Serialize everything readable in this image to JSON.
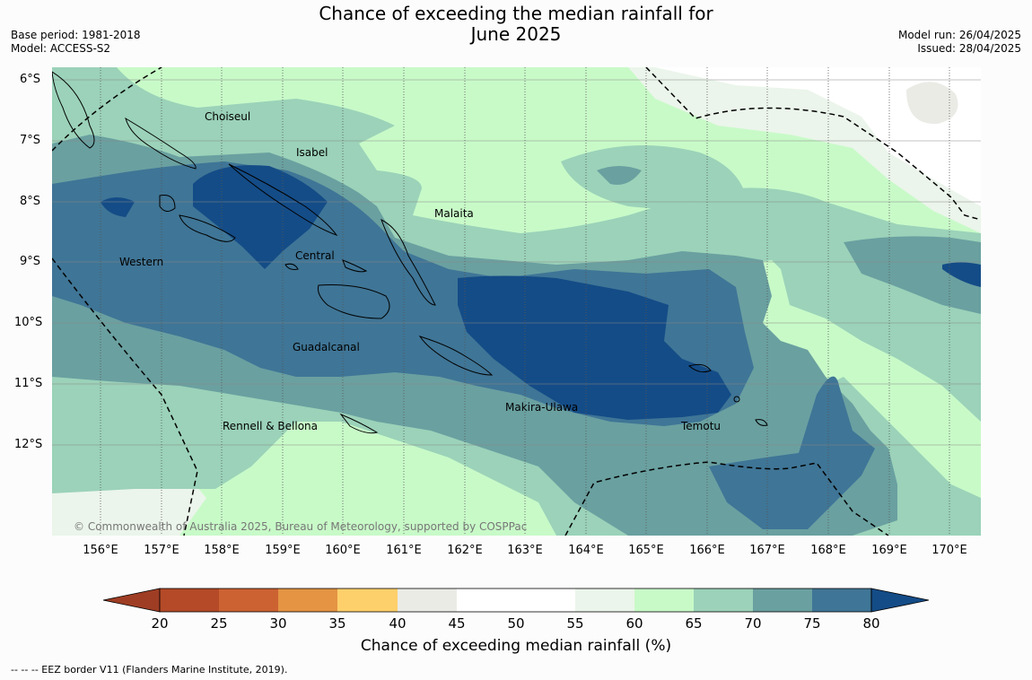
{
  "title_line1": "Chance of exceeding the median rainfall for",
  "title_line2": "June 2025",
  "base_period": "Base period: 1981-2018",
  "model": "Model: ACCESS-S2",
  "model_run": "Model run: 26/04/2025",
  "issued": "Issued: 28/04/2025",
  "copyright": "© Commonwealth of Australia 2025, Bureau of Meteorology, supported by COSPPac",
  "lat_labels": [
    "6°S",
    "7°S",
    "8°S",
    "9°S",
    "10°S",
    "11°S",
    "12°S"
  ],
  "lon_labels": [
    "156°E",
    "157°E",
    "158°E",
    "159°E",
    "160°E",
    "161°E",
    "162°E",
    "163°E",
    "164°E",
    "165°E",
    "166°E",
    "167°E",
    "168°E",
    "169°E",
    "170°E"
  ],
  "regions": {
    "choiseul": "Choiseul",
    "isabel": "Isabel",
    "malaita": "Malaita",
    "western": "Western",
    "central": "Central",
    "guadalcanal": "Guadalcanal",
    "makira": "Makira-Ulawa",
    "temotu": "Temotu",
    "rennell": "Rennell & Bellona"
  },
  "colorbar": {
    "title": "Chance of exceeding median rainfall (%)",
    "ticks": [
      "20",
      "25",
      "30",
      "35",
      "40",
      "45",
      "50",
      "55",
      "60",
      "65",
      "70",
      "75",
      "80"
    ],
    "colors": {
      "under20": "#9e3d24",
      "20-25": "#b44a27",
      "25-30": "#cc6232",
      "30-35": "#e49443",
      "35-40": "#fdd06b",
      "40-45": "#ebebe6",
      "45-50": "#ffffff",
      "50-55": "#ffffff",
      "55-60": "#ebf5eb",
      "60-65": "#c8fac8",
      "65-70": "#9bd2b9",
      "70-75": "#6aa0a0",
      "75-80": "#3f7596",
      "over80": "#144c87"
    }
  },
  "footer_legend": "-- -- -- EEZ border V11 (Flanders Marine Institute, 2019)."
}
